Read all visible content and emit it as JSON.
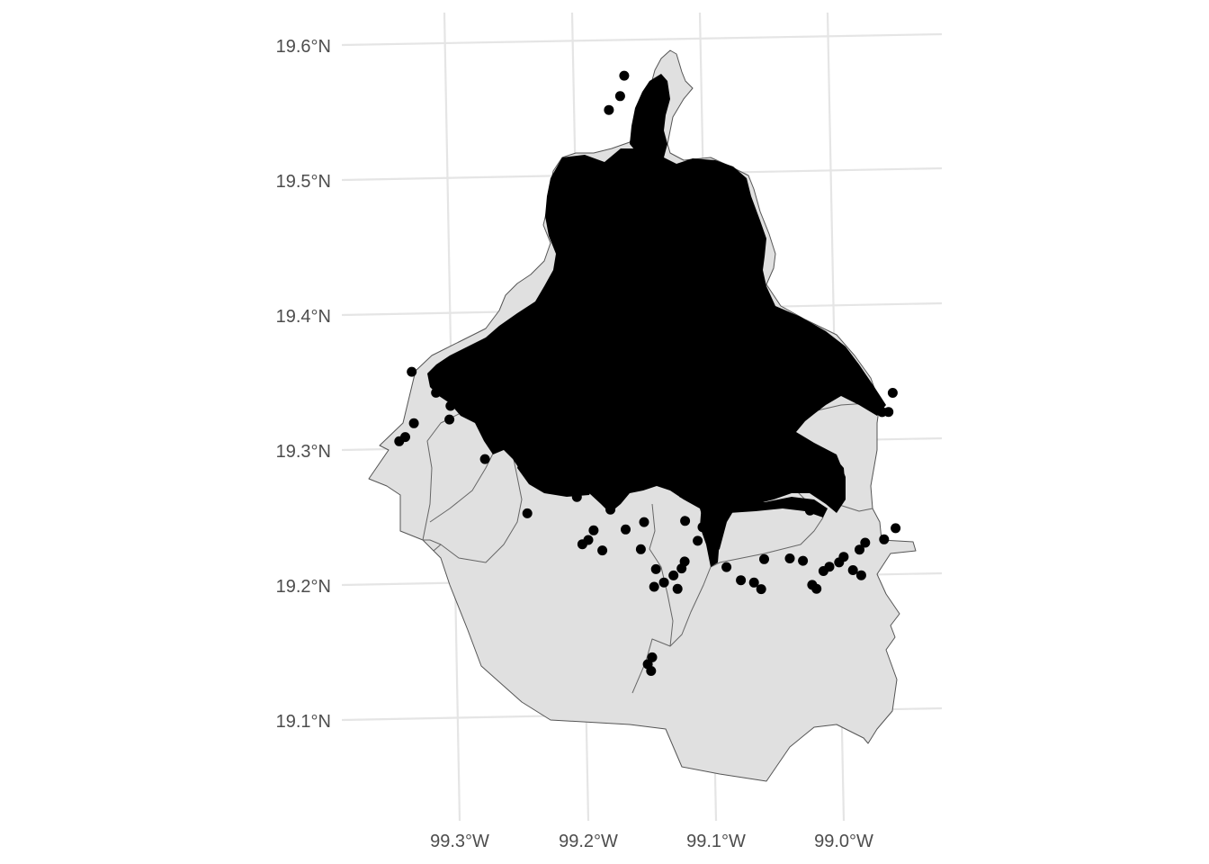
{
  "chart_data": {
    "type": "scatter",
    "map_projection": "geographic (lon/lat)",
    "title": "",
    "xlabel": "",
    "ylabel": "",
    "xlim": [
      -99.37,
      -98.95
    ],
    "ylim": [
      19.04,
      19.62
    ],
    "x_ticks": [
      {
        "value": -99.3,
        "label": "99.3°W"
      },
      {
        "value": -99.2,
        "label": "99.2°W"
      },
      {
        "value": -99.1,
        "label": "99.1°W"
      },
      {
        "value": -99.0,
        "label": "99.0°W"
      }
    ],
    "y_ticks": [
      {
        "value": 19.6,
        "label": "19.6°N"
      },
      {
        "value": 19.5,
        "label": "19.5°N"
      },
      {
        "value": 19.4,
        "label": "19.4°N"
      },
      {
        "value": 19.3,
        "label": "19.3°N"
      },
      {
        "value": 19.2,
        "label": "19.2°N"
      },
      {
        "value": 19.1,
        "label": "19.1°N"
      }
    ],
    "grid": true,
    "legend": "none",
    "base_layer": {
      "fill": "#e0e0e0",
      "border": "#555555",
      "description": "Mexico City boroughs (alcaldías) polygons"
    },
    "point_color": "#000000",
    "points": [
      {
        "lon": -99.343,
        "lat": 19.305
      },
      {
        "lon": -99.338,
        "lat": 19.308
      },
      {
        "lon": -99.33,
        "lat": 19.318
      },
      {
        "lon": -99.327,
        "lat": 19.356
      },
      {
        "lon": -99.31,
        "lat": 19.34
      },
      {
        "lon": -99.3,
        "lat": 19.33
      },
      {
        "lon": -99.302,
        "lat": 19.32
      },
      {
        "lon": -99.278,
        "lat": 19.29
      },
      {
        "lon": -99.25,
        "lat": 19.249
      },
      {
        "lon": -99.21,
        "lat": 19.225
      },
      {
        "lon": -99.205,
        "lat": 19.228
      },
      {
        "lon": -99.2,
        "lat": 19.235
      },
      {
        "lon": -99.195,
        "lat": 19.22
      },
      {
        "lon": -99.185,
        "lat": 19.25
      },
      {
        "lon": -99.175,
        "lat": 19.235
      },
      {
        "lon": -99.165,
        "lat": 19.22
      },
      {
        "lon": -99.16,
        "lat": 19.24
      },
      {
        "lon": -99.155,
        "lat": 19.205
      },
      {
        "lon": -99.15,
        "lat": 19.195
      },
      {
        "lon": -99.142,
        "lat": 19.2
      },
      {
        "lon": -99.14,
        "lat": 19.19
      },
      {
        "lon": -99.135,
        "lat": 19.205
      },
      {
        "lon": -99.132,
        "lat": 19.21
      },
      {
        "lon": -99.158,
        "lat": 19.192
      },
      {
        "lon": -99.17,
        "lat": 19.135
      },
      {
        "lon": -99.168,
        "lat": 19.13
      },
      {
        "lon": -99.166,
        "lat": 19.14
      },
      {
        "lon": -99.128,
        "lat": 19.24
      },
      {
        "lon": -99.12,
        "lat": 19.225
      },
      {
        "lon": -99.115,
        "lat": 19.235
      },
      {
        "lon": -99.1,
        "lat": 19.205
      },
      {
        "lon": -99.09,
        "lat": 19.195
      },
      {
        "lon": -99.08,
        "lat": 19.193
      },
      {
        "lon": -99.075,
        "lat": 19.188
      },
      {
        "lon": -99.07,
        "lat": 19.21
      },
      {
        "lon": -99.05,
        "lat": 19.21
      },
      {
        "lon": -99.04,
        "lat": 19.208
      },
      {
        "lon": -99.035,
        "lat": 19.19
      },
      {
        "lon": -99.032,
        "lat": 19.187
      },
      {
        "lon": -99.025,
        "lat": 19.2
      },
      {
        "lon": -99.02,
        "lat": 19.203
      },
      {
        "lon": -99.012,
        "lat": 19.206
      },
      {
        "lon": -99.008,
        "lat": 19.21
      },
      {
        "lon": -99.002,
        "lat": 19.2
      },
      {
        "lon": -98.996,
        "lat": 19.196
      },
      {
        "lon": -98.995,
        "lat": 19.215
      },
      {
        "lon": -98.99,
        "lat": 19.22
      },
      {
        "lon": -98.975,
        "lat": 19.222
      },
      {
        "lon": -98.965,
        "lat": 19.23
      },
      {
        "lon": -98.955,
        "lat": 19.33
      },
      {
        "lon": -98.96,
        "lat": 19.316
      },
      {
        "lon": -98.965,
        "lat": 19.316
      },
      {
        "lon": -99.05,
        "lat": 19.26
      },
      {
        "lon": -99.03,
        "lat": 19.245
      },
      {
        "lon": -99.01,
        "lat": 19.27
      },
      {
        "lon": -99.09,
        "lat": 19.28
      },
      {
        "lon": -99.11,
        "lat": 19.255
      },
      {
        "lon": -99.097,
        "lat": 19.448
      },
      {
        "lon": -99.1,
        "lat": 19.465
      },
      {
        "lon": -99.12,
        "lat": 19.51
      },
      {
        "lon": -99.135,
        "lat": 19.57
      },
      {
        "lon": -99.14,
        "lat": 19.555
      },
      {
        "lon": -99.15,
        "lat": 19.545
      },
      {
        "lon": -99.2,
        "lat": 19.31
      },
      {
        "lon": -99.22,
        "lat": 19.27
      },
      {
        "lon": -99.21,
        "lat": 19.26
      }
    ]
  }
}
